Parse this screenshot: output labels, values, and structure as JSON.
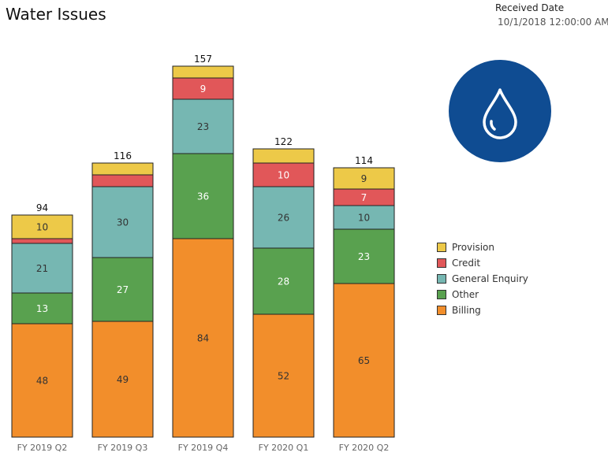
{
  "title": "Water Issues",
  "filter": {
    "label": "Received Date",
    "value": "10/1/2018 12:00:00 AM"
  },
  "icon": {
    "name": "water-drop-icon",
    "background": "#0F4C92",
    "stroke": "#ffffff"
  },
  "chart_data": {
    "type": "bar",
    "stacked": true,
    "categories": [
      "FY 2019 Q2",
      "FY 2019 Q3",
      "FY 2019 Q4",
      "FY 2020 Q1",
      "FY 2020 Q2"
    ],
    "totals": [
      94,
      116,
      157,
      122,
      114
    ],
    "series": [
      {
        "name": "Billing",
        "color": "#F28E2B",
        "values": [
          48,
          49,
          84,
          52,
          65
        ],
        "labels": [
          "48",
          "49",
          "84",
          "52",
          "65"
        ]
      },
      {
        "name": "Other",
        "color": "#59A14F",
        "values": [
          13,
          27,
          36,
          28,
          23
        ],
        "labels": [
          "13",
          "27",
          "36",
          "28",
          "23"
        ]
      },
      {
        "name": "General Enquiry",
        "color": "#76B7B2",
        "values": [
          21,
          30,
          23,
          26,
          10
        ],
        "labels": [
          "21",
          "30",
          "23",
          "26",
          "10"
        ]
      },
      {
        "name": "Credit",
        "color": "#E15759",
        "values": [
          2,
          5,
          9,
          10,
          7
        ],
        "labels": [
          "",
          "",
          "9",
          "10",
          "7"
        ]
      },
      {
        "name": "Provision",
        "color": "#EDC948",
        "values": [
          10,
          5,
          5,
          6,
          9
        ],
        "labels": [
          "10",
          "",
          "",
          "",
          "9"
        ]
      }
    ],
    "legend": {
      "position": "right",
      "order": [
        "Provision",
        "Credit",
        "General Enquiry",
        "Other",
        "Billing"
      ]
    },
    "ylim": [
      0,
      157
    ],
    "grid": false
  }
}
